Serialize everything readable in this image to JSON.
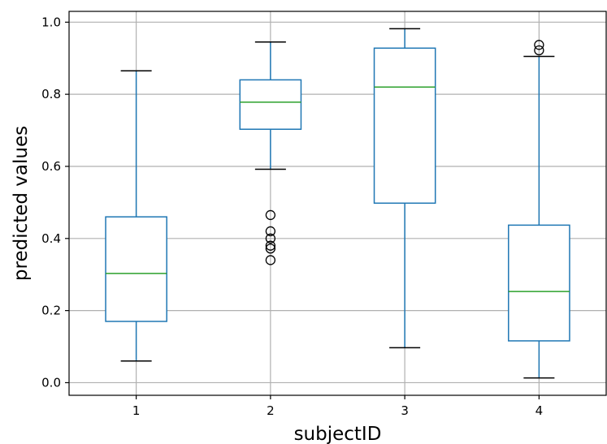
{
  "chart_data": {
    "type": "box",
    "title": "",
    "xlabel": "subjectID",
    "ylabel": "predicted values",
    "categories": [
      "1",
      "2",
      "3",
      "4"
    ],
    "ylim": [
      -0.035,
      1.03
    ],
    "yticks": [
      0.0,
      0.2,
      0.4,
      0.6,
      0.8,
      1.0
    ],
    "ytick_labels": [
      "0.0",
      "0.2",
      "0.4",
      "0.6",
      "0.8",
      "1.0"
    ],
    "grid": true,
    "legend": "none",
    "boxes": [
      {
        "category": "1",
        "whisker_low": 0.06,
        "q1": 0.17,
        "median": 0.303,
        "q3": 0.46,
        "whisker_high": 0.865,
        "outliers": []
      },
      {
        "category": "2",
        "whisker_low": 0.592,
        "q1": 0.703,
        "median": 0.778,
        "q3": 0.84,
        "whisker_high": 0.945,
        "outliers": [
          0.465,
          0.42,
          0.4,
          0.38,
          0.372,
          0.34
        ]
      },
      {
        "category": "3",
        "whisker_low": 0.097,
        "q1": 0.498,
        "median": 0.82,
        "q3": 0.928,
        "whisker_high": 0.982,
        "outliers": []
      },
      {
        "category": "4",
        "whisker_low": 0.013,
        "q1": 0.116,
        "median": 0.253,
        "q3": 0.437,
        "whisker_high": 0.905,
        "outliers": [
          0.922,
          0.937
        ]
      }
    ],
    "colors": {
      "box": "#1f77b4",
      "median": "#2ca02c",
      "whisker_cap": "#000000",
      "flier": "#000000",
      "grid": "#b0b0b0",
      "spine": "#000000"
    }
  }
}
